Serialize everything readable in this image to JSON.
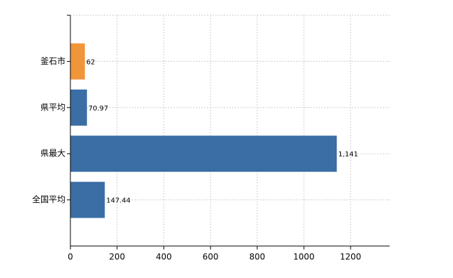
{
  "chart_data": {
    "type": "barh",
    "categories": [
      "釜石市",
      "県平均",
      "県最大",
      "全国平均"
    ],
    "values": [
      62,
      70.97,
      1141,
      147.44
    ],
    "value_labels": [
      "62",
      "70.97",
      "1,141",
      "147.44"
    ],
    "colors": [
      "#f0953a",
      "#3a6ea5",
      "#3a6ea5",
      "#3a6ea5"
    ],
    "xlim": [
      0,
      1367
    ],
    "xticks": [
      0,
      200,
      400,
      600,
      800,
      1000,
      1200
    ],
    "grid": true
  }
}
